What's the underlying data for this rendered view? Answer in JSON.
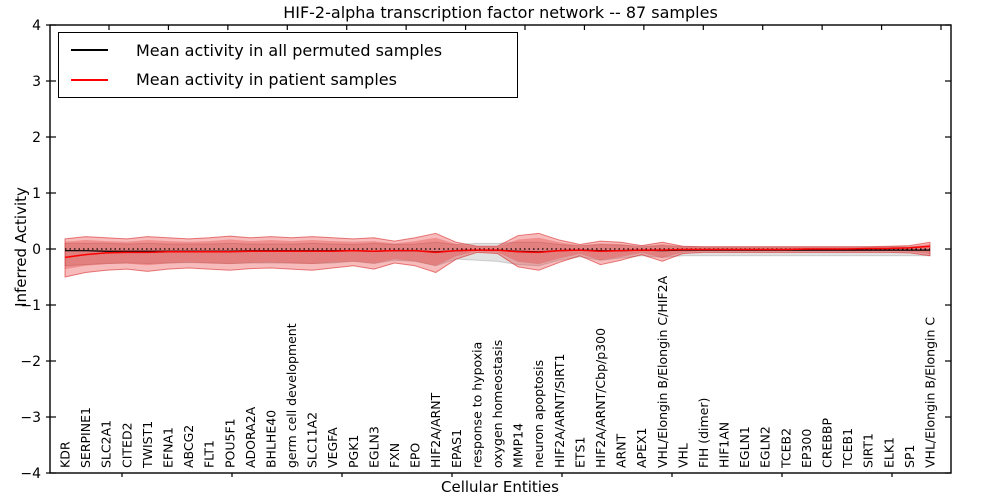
{
  "header": {
    "title": "HIF-2-alpha transcription factor network -- 87 samples"
  },
  "legend": {
    "items": [
      {
        "label": "Mean activity in all permuted samples",
        "color": "#000000"
      },
      {
        "label": "Mean activity in patient samples",
        "color": "#ff0000"
      }
    ]
  },
  "chart_data": {
    "type": "line",
    "title": "HIF-2-alpha transcription factor network -- 87 samples",
    "xlabel": "Cellular Entities",
    "ylabel": "Inferred Activity",
    "ylim": [
      -4,
      4
    ],
    "yticks": [
      4,
      3,
      2,
      1,
      0,
      -1,
      -2,
      -3,
      -4
    ],
    "grid": false,
    "legend_position": "upper left",
    "categories": [
      "KDR",
      "SERPINE1",
      "SLC2A1",
      "CITED2",
      "TWIST1",
      "EFNA1",
      "ABCG2",
      "FLT1",
      "POU5F1",
      "ADORA2A",
      "BHLHE40",
      "germ cell development",
      "SLC11A2",
      "VEGFA",
      "PGK1",
      "EGLN3",
      "FXN",
      "EPO",
      "HIF2A/ARNT",
      "EPAS1",
      "response to hypoxia",
      "oxygen homeostasis",
      "MMP14",
      "neuron apoptosis",
      "HIF2A/ARNT/SIRT1",
      "ETS1",
      "HIF2A/ARNT/Cbp/p300",
      "ARNT",
      "APEX1",
      "VHL/Elongin B/Elongin C/HIF2A",
      "VHL",
      "FIH (dimer)",
      "HIF1AN",
      "EGLN1",
      "EGLN2",
      "TCEB2",
      "EP300",
      "CREBBP",
      "TCEB1",
      "SIRT1",
      "ELK1",
      "SP1",
      "VHL/Elongin B/Elongin C"
    ],
    "series": [
      {
        "name": "Mean activity in all permuted samples",
        "color": "#000000",
        "values": [
          -0.03,
          -0.03,
          -0.04,
          -0.04,
          -0.04,
          -0.04,
          -0.04,
          -0.04,
          -0.04,
          -0.03,
          -0.03,
          -0.03,
          -0.03,
          -0.03,
          -0.03,
          -0.04,
          -0.03,
          -0.03,
          -0.05,
          -0.03,
          -0.02,
          -0.02,
          -0.04,
          -0.05,
          -0.03,
          -0.02,
          -0.03,
          -0.03,
          -0.02,
          -0.03,
          -0.02,
          -0.02,
          -0.02,
          -0.02,
          -0.02,
          -0.02,
          -0.02,
          -0.02,
          -0.02,
          -0.02,
          -0.02,
          -0.02,
          -0.02
        ]
      },
      {
        "name": "Mean activity in patient samples",
        "color": "#ff0000",
        "values": [
          -0.15,
          -0.1,
          -0.07,
          -0.06,
          -0.06,
          -0.05,
          -0.05,
          -0.05,
          -0.05,
          -0.04,
          -0.04,
          -0.04,
          -0.04,
          -0.04,
          -0.03,
          -0.04,
          -0.03,
          -0.03,
          -0.06,
          -0.03,
          -0.02,
          -0.02,
          -0.05,
          -0.06,
          -0.03,
          -0.02,
          -0.04,
          -0.03,
          -0.02,
          -0.02,
          -0.01,
          -0.01,
          -0.01,
          -0.01,
          -0.01,
          -0.01,
          0.0,
          0.0,
          0.0,
          0.01,
          0.01,
          0.02,
          0.05
        ]
      }
    ],
    "zero_line": 0,
    "bands": [
      {
        "name": "permuted-std-band",
        "fill": "rgba(120,120,120,0.22)",
        "stroke": "rgba(120,120,120,0.30)",
        "top": [
          0.1,
          0.1,
          0.1,
          0.09,
          0.1,
          0.09,
          0.09,
          0.09,
          0.1,
          0.09,
          0.09,
          0.09,
          0.1,
          0.09,
          0.08,
          0.1,
          0.08,
          0.09,
          0.12,
          0.08,
          0.1,
          0.1,
          0.12,
          0.12,
          0.08,
          0.06,
          0.08,
          0.07,
          0.05,
          0.06,
          0.04,
          0.04,
          0.04,
          0.04,
          0.04,
          0.04,
          0.04,
          0.04,
          0.04,
          0.04,
          0.04,
          0.04,
          0.05
        ],
        "bottom": [
          -0.3,
          -0.28,
          -0.26,
          -0.25,
          -0.26,
          -0.25,
          -0.24,
          -0.25,
          -0.26,
          -0.25,
          -0.25,
          -0.25,
          -0.26,
          -0.25,
          -0.22,
          -0.26,
          -0.2,
          -0.22,
          -0.3,
          -0.18,
          -0.2,
          -0.22,
          -0.28,
          -0.3,
          -0.2,
          -0.14,
          -0.2,
          -0.16,
          -0.12,
          -0.15,
          -0.12,
          -0.12,
          -0.12,
          -0.12,
          -0.12,
          -0.12,
          -0.12,
          -0.12,
          -0.12,
          -0.12,
          -0.12,
          -0.12,
          -0.12
        ]
      },
      {
        "name": "patient-std-band-outer",
        "fill": "rgba(228,30,30,0.30)",
        "stroke": "rgba(215,25,25,0.55)",
        "top": [
          0.18,
          0.22,
          0.2,
          0.18,
          0.22,
          0.2,
          0.18,
          0.2,
          0.23,
          0.2,
          0.22,
          0.2,
          0.22,
          0.2,
          0.18,
          0.2,
          0.14,
          0.2,
          0.28,
          0.12,
          0.05,
          0.05,
          0.24,
          0.28,
          0.16,
          0.08,
          0.14,
          0.12,
          0.06,
          0.12,
          0.05,
          0.04,
          0.04,
          0.04,
          0.04,
          0.04,
          0.04,
          0.04,
          0.04,
          0.04,
          0.05,
          0.06,
          0.12
        ],
        "bottom": [
          -0.5,
          -0.42,
          -0.38,
          -0.36,
          -0.4,
          -0.36,
          -0.34,
          -0.36,
          -0.38,
          -0.35,
          -0.34,
          -0.36,
          -0.38,
          -0.34,
          -0.3,
          -0.36,
          -0.25,
          -0.3,
          -0.42,
          -0.18,
          -0.06,
          -0.08,
          -0.32,
          -0.38,
          -0.24,
          -0.12,
          -0.28,
          -0.2,
          -0.1,
          -0.22,
          -0.08,
          -0.06,
          -0.06,
          -0.06,
          -0.06,
          -0.06,
          -0.06,
          -0.06,
          -0.06,
          -0.06,
          -0.06,
          -0.07,
          -0.12
        ]
      },
      {
        "name": "patient-std-band-inner",
        "fill": "rgba(228,30,30,0.28)",
        "stroke": "none",
        "top": [
          0.13,
          0.16,
          0.14,
          0.13,
          0.16,
          0.14,
          0.13,
          0.14,
          0.17,
          0.14,
          0.16,
          0.14,
          0.16,
          0.14,
          0.13,
          0.14,
          0.1,
          0.14,
          0.2,
          0.09,
          0.04,
          0.04,
          0.17,
          0.2,
          0.12,
          0.06,
          0.1,
          0.09,
          0.04,
          0.09,
          0.04,
          0.03,
          0.03,
          0.03,
          0.03,
          0.03,
          0.03,
          0.03,
          0.03,
          0.03,
          0.04,
          0.04,
          0.09
        ],
        "bottom": [
          -0.36,
          -0.3,
          -0.27,
          -0.26,
          -0.29,
          -0.26,
          -0.24,
          -0.26,
          -0.27,
          -0.25,
          -0.24,
          -0.26,
          -0.27,
          -0.24,
          -0.22,
          -0.26,
          -0.18,
          -0.22,
          -0.3,
          -0.13,
          -0.04,
          -0.06,
          -0.23,
          -0.27,
          -0.17,
          -0.09,
          -0.2,
          -0.14,
          -0.07,
          -0.16,
          -0.06,
          -0.04,
          -0.04,
          -0.04,
          -0.04,
          -0.04,
          -0.04,
          -0.04,
          -0.04,
          -0.04,
          -0.04,
          -0.05,
          -0.09
        ]
      }
    ]
  }
}
